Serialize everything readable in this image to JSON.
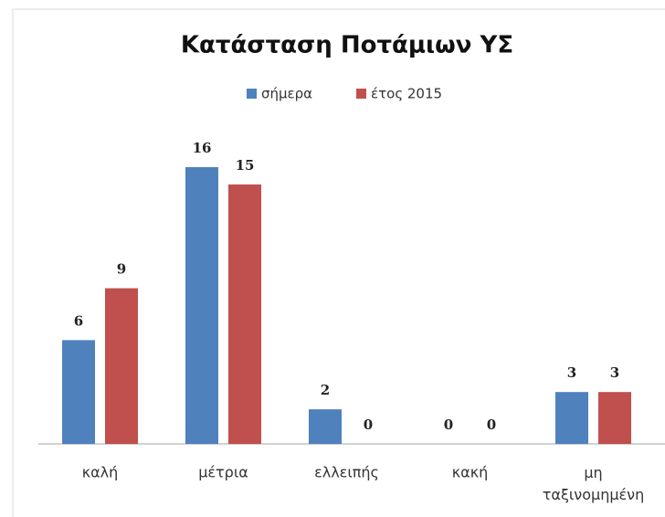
{
  "chart_data": {
    "type": "bar",
    "title": "Κατάσταση Ποτάμιων ΥΣ",
    "categories": [
      "καλή",
      "μέτρια",
      "ελλειπής",
      "κακή",
      "μη ταξινομημένη"
    ],
    "series": [
      {
        "name": "σήμερα",
        "color": "#4f81bd",
        "values": [
          6,
          16,
          2,
          0,
          3
        ]
      },
      {
        "name": "έτος 2015",
        "color": "#c0504d",
        "values": [
          9,
          15,
          0,
          0,
          3
        ]
      }
    ]
  }
}
